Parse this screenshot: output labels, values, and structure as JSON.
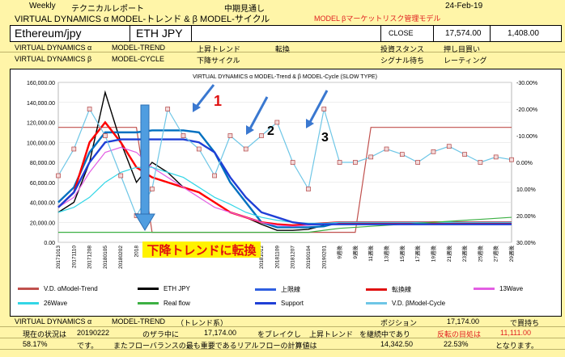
{
  "header": {
    "weekly": "Weekly",
    "report": "テクニカルレポート",
    "outlook": "中期見通し",
    "date": "24-Feb-19",
    "title": "VIRTUAL DYNAMICS α MODEL-トレンド & β MODEL-サイクル",
    "model_red": "MODEL βマーケットリスク管理モデル"
  },
  "instrument": {
    "name": "Ethereum/jpy",
    "code": "ETH JPY",
    "close_label": "CLOSE",
    "close_value": "17,574.00",
    "change": "1,408.00"
  },
  "info_rows": [
    {
      "label": "VIRTUAL DYNAMICS α",
      "model": "MODEL-TREND",
      "state": "上昇トレンド",
      "action": "転換",
      "stance_label": "投資スタンス",
      "stance_value": "押し目買い"
    },
    {
      "label": "VIRTUAL DYNAMICS β",
      "model": "MODEL-CYCLE",
      "state": "下降サイクル",
      "action": "",
      "stance_label": "シグナル待ち",
      "stance_value": "レーティング"
    }
  ],
  "chart_data": {
    "type": "line",
    "title": "VIRTUAL DYNAMICS α MODEL-Trend & β MODEL-Cycle (SLOW TYPE)",
    "y_left_ticks": [
      "160,000.00",
      "140,000.00",
      "120,000.00",
      "100,000.00",
      "80,000.00",
      "60,000.00",
      "40,000.00",
      "20,000.00",
      "0.00"
    ],
    "y_right_ticks": [
      "-30.00%",
      "-20.00%",
      "-10.00%",
      "0.00%",
      "10.00%",
      "20.00%",
      "30.00%"
    ],
    "ylim_left": [
      0,
      160000
    ],
    "ylim_right": [
      -30,
      30
    ],
    "x_labels": [
      "20171013",
      "20171110",
      "20171208",
      "20180105",
      "20180202",
      "2018",
      "2018",
      "2018",
      "2018",
      "2018",
      "2018",
      "2018",
      "2018",
      "20181012",
      "20181109",
      "20181207",
      "20190104",
      "20190201",
      "9週後",
      "9週後",
      "11週後",
      "13週後",
      "15週後",
      "17週後",
      "19週後",
      "21週後",
      "23週後",
      "25週後",
      "27週後",
      "29週後"
    ],
    "series": [
      {
        "name": "V.D. αModel-Trend",
        "color": "#C0504D",
        "values": [
          115000,
          115000,
          115000,
          115000,
          115000,
          115000,
          10000,
          10000,
          10000,
          10000,
          10000,
          10000,
          10000,
          10000,
          10000,
          10000,
          10000,
          10000,
          10000,
          10000,
          115000,
          115000,
          115000,
          115000,
          115000,
          115000,
          115000,
          115000,
          115000,
          115000
        ]
      },
      {
        "name": "ETH JPY",
        "color": "#000000",
        "values": [
          30000,
          40000,
          80000,
          150000,
          100000,
          60000,
          80000,
          70000,
          55000,
          50000,
          40000,
          30000,
          25000,
          18000,
          12000,
          12000,
          13000,
          17000
        ]
      },
      {
        "name": "上限線",
        "color": "#0070C0",
        "values": [
          40000,
          55000,
          90000,
          110000,
          110000,
          110000,
          112000,
          112000,
          112000,
          110000,
          90000,
          60000,
          40000,
          20000,
          15000,
          15000,
          15000,
          16000,
          20000,
          20000,
          20000,
          20000,
          20000,
          20000,
          20000,
          20000,
          20000,
          20000,
          20000,
          20000
        ]
      },
      {
        "name": "転換線",
        "color": "#FF0000",
        "values": [
          35000,
          50000,
          100000,
          120000,
          100000,
          75000,
          65000,
          60000,
          55000,
          50000,
          40000,
          30000,
          25000,
          20000,
          18000,
          17000,
          18000,
          19000,
          20000,
          20000,
          20000,
          20000,
          20000,
          20000,
          20000,
          20000,
          20000,
          20000,
          20000,
          20000
        ]
      },
      {
        "name": "13Wave",
        "color": "#E35EE3",
        "values": [
          35000,
          45000,
          70000,
          90000,
          95000,
          90000,
          75000,
          65000,
          55000,
          45000,
          35000,
          30000,
          25000,
          20000,
          17000,
          16000,
          17000,
          18000,
          20000,
          20000,
          20000,
          20000,
          20000,
          20000,
          20000,
          20000,
          20000,
          20000,
          20000,
          20000
        ]
      },
      {
        "name": "26Wave",
        "color": "#33D6E6",
        "values": [
          30000,
          35000,
          45000,
          60000,
          70000,
          75000,
          75000,
          70000,
          65000,
          55000,
          45000,
          38000,
          30000,
          25000,
          22000,
          20000,
          19000,
          19000,
          20000,
          20000,
          20000,
          20000,
          20000,
          20000,
          20000,
          20000,
          20000,
          20000,
          20000,
          20000
        ]
      },
      {
        "name": "Real flow",
        "color": "#3CB043",
        "values": [
          10000,
          10000,
          10000,
          10000,
          10000,
          10000,
          10000,
          10000,
          10000,
          10000,
          10000,
          10000,
          10000,
          10000,
          10000,
          10000,
          10000,
          12000,
          14000,
          15000,
          16000,
          17000,
          18000,
          19000,
          20000,
          21000,
          22000,
          23000,
          24000,
          25000
        ]
      },
      {
        "name": "Support",
        "color": "#1F3FD6",
        "values": [
          35000,
          50000,
          80000,
          100000,
          103000,
          103000,
          103000,
          103000,
          103000,
          100000,
          90000,
          65000,
          45000,
          30000,
          25000,
          20000,
          18000,
          18000,
          18000,
          18000,
          18000,
          18000,
          18000,
          18000,
          18000,
          18000,
          18000,
          18000,
          18000,
          18000
        ]
      },
      {
        "name": "V.D. βModel-Cycle",
        "color": "#6EC6E6",
        "values": [
          5,
          -5,
          -20,
          -10,
          5,
          20,
          10,
          -20,
          -10,
          -5,
          5,
          -10,
          -5,
          -10,
          -15,
          0,
          10,
          -20,
          0,
          0,
          -2,
          -5,
          -3,
          0,
          -4,
          -6,
          -3,
          0,
          -2,
          -1
        ]
      }
    ],
    "annotations": [
      "1",
      "2",
      "3",
      "下降トレンドに転換"
    ]
  },
  "legend": [
    {
      "label": "V.D. αModel-Trend",
      "color": "#C0504D"
    },
    {
      "label": "ETH JPY",
      "color": "#000000"
    },
    {
      "label": "上限線",
      "color": "#2F5FE0"
    },
    {
      "label": "転換線",
      "color": "#E01010"
    },
    {
      "label": "13Wave",
      "color": "#E35EE3"
    },
    {
      "label": "26Wave",
      "color": "#33D6E6"
    },
    {
      "label": "Real flow",
      "color": "#3CB043"
    },
    {
      "label": "Support",
      "color": "#1F3FD6"
    },
    {
      "label": "V.D. βModel-Cycle",
      "color": "#6EC6E6"
    }
  ],
  "footer": {
    "r1_a": "VIRTUAL DYNAMICS α",
    "r1_b": "MODEL-TREND",
    "r1_c": "（トレンド系）",
    "r1_d": "ポジション",
    "r1_e": "17,174.00",
    "r1_f": "で買持ち",
    "r2_a": "現在の状況は",
    "r2_b": "20190222",
    "r2_c": "のザラ中に",
    "r2_d": "17,174.00",
    "r2_e": "をブレイクし",
    "r2_f": "上昇トレンド",
    "r2_g": "を継続中であり",
    "r2_h": "反転の目処は",
    "r2_i": "11,111.00",
    "r3_a": "58.17%",
    "r3_b": "です。",
    "r3_c": "またフローバランスの最も重要であるリアルフローの計算値は",
    "r3_d": "14,342.50",
    "r3_e": "22.53%",
    "r3_f": "となります。"
  }
}
